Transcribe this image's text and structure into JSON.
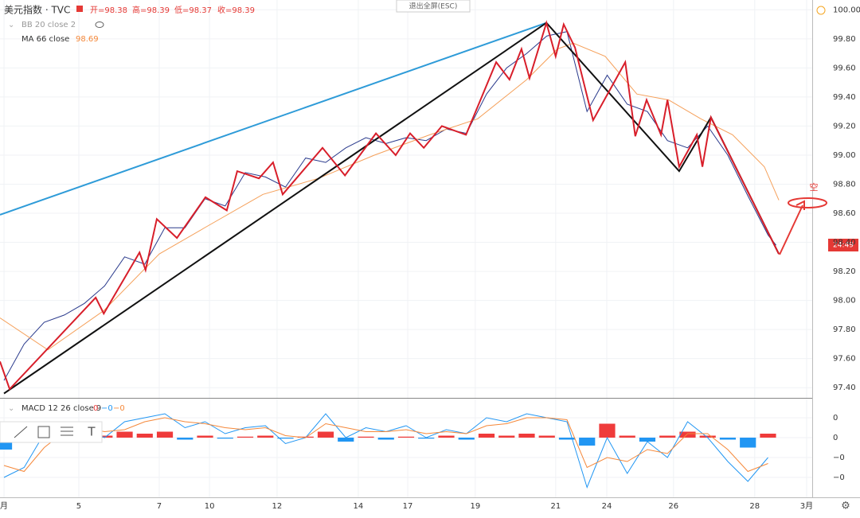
{
  "chart_data": [
    {
      "type": "line",
      "title": "美元指数 · TVC",
      "ohlc": [
        "开=98.38",
        "高=98.39",
        "低=98.37",
        "收=98.39"
      ],
      "hidden_indicator": "BB 20 close 2",
      "ylim": [
        97.33,
        100.04
      ],
      "yticks": [
        {
          "value": 97.4,
          "label": "97.40"
        },
        {
          "value": 97.6,
          "label": "97.60"
        },
        {
          "value": 97.8,
          "label": "97.80"
        },
        {
          "value": 98.0,
          "label": "98.00"
        },
        {
          "value": 98.2,
          "label": "98.20"
        },
        {
          "value": 98.4,
          "label": "98.40"
        },
        {
          "value": 98.6,
          "label": "98.60"
        },
        {
          "value": 98.8,
          "label": "98.80"
        },
        {
          "value": 99.0,
          "label": "99.00"
        },
        {
          "value": 99.2,
          "label": "99.20"
        },
        {
          "value": 99.4,
          "label": "99.40"
        },
        {
          "value": 99.6,
          "label": "99.60"
        },
        {
          "value": 99.8,
          "label": "99.80"
        },
        {
          "value": 100.0,
          "label": "100.00"
        }
      ],
      "grid": true,
      "series": [
        {
          "color": "#2a3a8c",
          "x": [
            0,
            0.5,
            1,
            1.5,
            2,
            2.5,
            3,
            3.5,
            4,
            4.5,
            5,
            5.5,
            6,
            6.5,
            7,
            7.5,
            8,
            8.5,
            9,
            9.5,
            10,
            10.5,
            11,
            11.5,
            12,
            12.5,
            13,
            13.5,
            14,
            14.5,
            15,
            15.5,
            16,
            16.5,
            17,
            17.5,
            18,
            18.5,
            19,
            19.2
          ],
          "values": [
            97.45,
            97.7,
            97.85,
            97.9,
            97.98,
            98.1,
            98.3,
            98.25,
            98.5,
            98.5,
            98.7,
            98.65,
            98.88,
            98.85,
            98.78,
            98.98,
            98.95,
            99.05,
            99.12,
            99.08,
            99.12,
            99.1,
            99.18,
            99.15,
            99.42,
            99.6,
            99.7,
            99.82,
            99.85,
            99.3,
            99.55,
            99.35,
            99.3,
            99.1,
            99.05,
            99.2,
            99.0,
            98.72,
            98.45,
            98.38
          ]
        },
        {
          "name": "MA 66 close",
          "value_label": "98.69",
          "color": "#f5a05a",
          "x": [
            -0.1,
            1.09,
            2.48,
            3.86,
            5.05,
            6.44,
            7.82,
            9.21,
            10.59,
            11.78,
            13.0,
            13.76,
            14.16,
            14.95,
            15.74,
            16.53,
            17.33,
            18.12,
            18.91,
            19.27
          ],
          "values": [
            97.88,
            97.66,
            97.93,
            98.32,
            98.51,
            98.73,
            98.84,
            99.0,
            99.14,
            99.25,
            99.52,
            99.73,
            99.77,
            99.68,
            99.42,
            99.38,
            99.25,
            99.14,
            98.92,
            98.69
          ]
        }
      ],
      "drawings": [
        {
          "color": "#2e9bd8",
          "x": [
            -0.1,
            13.49
          ],
          "values": [
            98.59,
            99.91
          ]
        },
        {
          "color": "#111111",
          "x": [
            0,
            13.49,
            16.79,
            17.58,
            19.27
          ],
          "values": [
            97.36,
            99.91,
            98.89,
            99.26,
            98.32
          ]
        },
        {
          "color": "#d81e2a",
          "x": [
            -0.1,
            0.14,
            2.28,
            2.48,
            3.37,
            3.52,
            3.8,
            4.3,
            5.01,
            5.54,
            5.8,
            6.34,
            6.69,
            6.93,
            7.92,
            8.48,
            9.25,
            9.74,
            10.1,
            10.44,
            10.89,
            11.49,
            12.24,
            12.57,
            12.87,
            13.07,
            13.49,
            13.72,
            13.92,
            14.2,
            14.65,
            15.45,
            15.7,
            15.98,
            16.34,
            16.5,
            16.79,
            17.23,
            17.37,
            17.58,
            19.27
          ],
          "values": [
            97.58,
            97.39,
            98.02,
            97.91,
            98.33,
            98.21,
            98.56,
            98.43,
            98.71,
            98.62,
            98.89,
            98.84,
            98.95,
            98.73,
            99.05,
            98.86,
            99.15,
            99.0,
            99.15,
            99.05,
            99.2,
            99.14,
            99.64,
            99.52,
            99.73,
            99.53,
            99.91,
            99.68,
            99.9,
            99.74,
            99.24,
            99.64,
            99.13,
            99.38,
            99.14,
            99.38,
            98.92,
            99.14,
            98.92,
            99.26,
            98.32
          ]
        }
      ]
    },
    {
      "type": "macd",
      "title": "MACD 12 26 close 9",
      "xlim": [
        -0.1,
        20.1
      ],
      "xticks": [
        {
          "value": 0,
          "label": "月"
        },
        {
          "value": 1.86,
          "label": "5"
        },
        {
          "value": 3.86,
          "label": "7"
        },
        {
          "value": 5.11,
          "label": "10"
        },
        {
          "value": 6.79,
          "label": "12"
        },
        {
          "value": 8.81,
          "label": "14"
        },
        {
          "value": 10.04,
          "label": "17"
        },
        {
          "value": 11.72,
          "label": "19"
        },
        {
          "value": 13.72,
          "label": "21"
        },
        {
          "value": 14.99,
          "label": "24"
        },
        {
          "value": 16.65,
          "label": "26"
        },
        {
          "value": 18.67,
          "label": "28"
        },
        {
          "value": 19.96,
          "label": "3月"
        }
      ],
      "ylim": [
        -0.3,
        0.18
      ],
      "yticks": [
        {
          "value": 0.1,
          "label": "0"
        },
        {
          "value": 0,
          "label": "0"
        },
        {
          "value": -0.1,
          "label": "−0"
        },
        {
          "value": -0.2,
          "label": "−0"
        }
      ],
      "x": [
        0,
        0.5,
        1,
        1.5,
        2,
        2.5,
        3,
        3.5,
        4,
        4.5,
        5,
        5.5,
        6,
        6.5,
        7,
        7.5,
        8,
        8.5,
        9,
        9.5,
        10,
        10.5,
        11,
        11.5,
        12,
        12.5,
        13,
        13.5,
        14,
        14.5,
        15,
        15.5,
        16,
        16.5,
        17,
        17.5,
        18,
        18.5,
        19
      ],
      "histogram": {
        "legend_value": "0",
        "colors": [
          "#ef3b3b",
          "#2196f3"
        ],
        "values": [
          -0.06,
          -0.02,
          0.01,
          0.01,
          -0.005,
          0.01,
          0.03,
          0.02,
          0.03,
          -0.01,
          0.01,
          -0.005,
          0.005,
          0.01,
          -0.005,
          0.005,
          0.03,
          -0.02,
          0.005,
          -0.01,
          0.005,
          -0.005,
          0.01,
          -0.01,
          0.02,
          0.01,
          0.02,
          0.01,
          -0.01,
          -0.04,
          0.07,
          0.01,
          -0.02,
          0.01,
          0.03,
          0.01,
          -0.01,
          -0.05,
          0.02
        ]
      },
      "series": [
        {
          "legend_value": "−0",
          "color": "#2196f3",
          "values": [
            -0.2,
            -0.15,
            0.02,
            0.06,
            0.05,
            0.0,
            0.08,
            0.1,
            0.12,
            0.05,
            0.08,
            0.02,
            0.05,
            0.06,
            -0.03,
            0.0,
            0.12,
            0.0,
            0.05,
            0.03,
            0.06,
            0.0,
            0.04,
            0.02,
            0.1,
            0.08,
            0.12,
            0.1,
            0.08,
            -0.25,
            0.0,
            -0.18,
            -0.02,
            -0.1,
            0.08,
            0.0,
            -0.12,
            -0.22,
            -0.1
          ]
        },
        {
          "legend_value": "−0",
          "color": "#f5883a",
          "values": [
            -0.14,
            -0.17,
            -0.05,
            0.03,
            0.05,
            0.03,
            0.04,
            0.08,
            0.1,
            0.08,
            0.07,
            0.05,
            0.04,
            0.05,
            0.01,
            0.0,
            0.07,
            0.05,
            0.03,
            0.03,
            0.04,
            0.02,
            0.03,
            0.02,
            0.06,
            0.07,
            0.1,
            0.1,
            0.09,
            -0.15,
            -0.1,
            -0.12,
            -0.06,
            -0.08,
            0.02,
            0.02,
            -0.06,
            -0.17,
            -0.13
          ]
        }
      ]
    }
  ],
  "ui": {
    "exit_fullscreen": "退出全屏(ESC)",
    "countdown": "24:49",
    "annotation": "空"
  }
}
